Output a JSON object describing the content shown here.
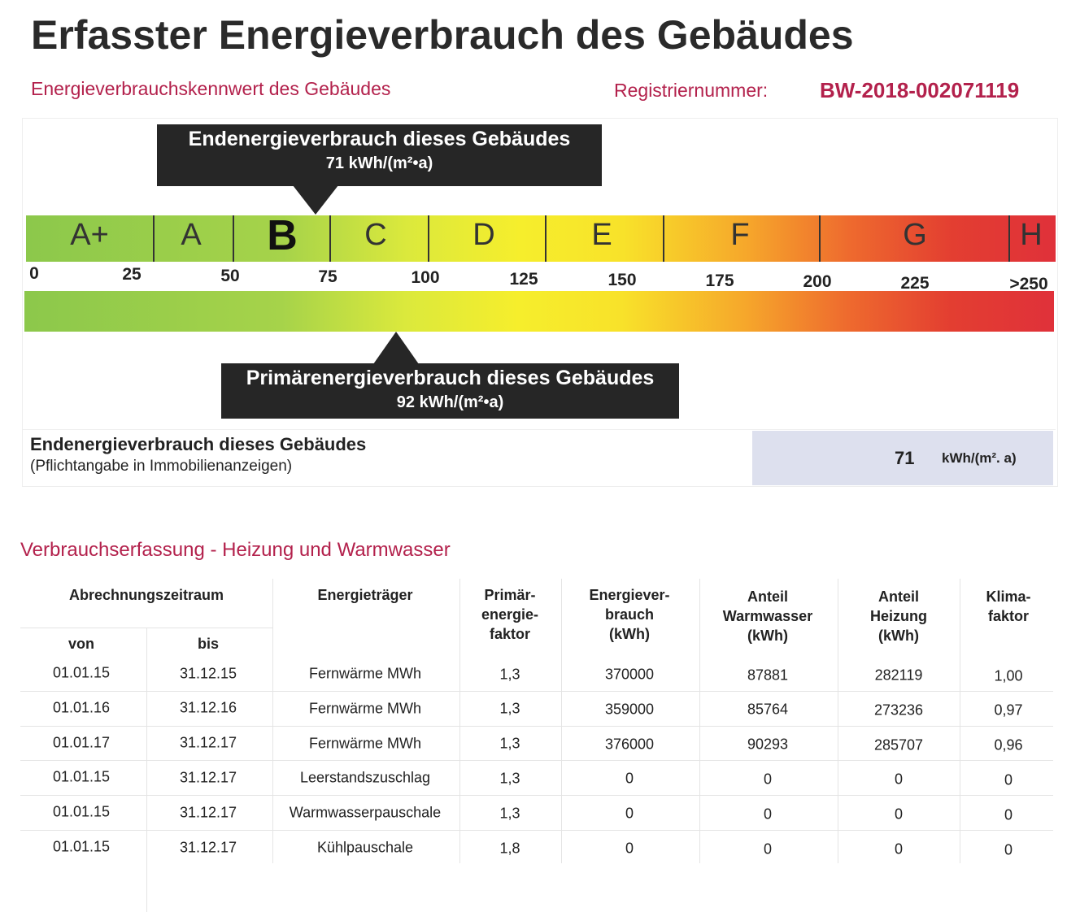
{
  "title": "Erfasster Energieverbrauch des Gebäudes",
  "subtitle": "Energieverbrauchskennwert des Gebäudes",
  "registration": {
    "label": "Registriernummer:",
    "value": "BW-2018-002071119"
  },
  "scale": {
    "classes": [
      "A+",
      "A",
      "B",
      "C",
      "D",
      "E",
      "F",
      "G",
      "H"
    ],
    "ticks": [
      "0",
      "25",
      "50",
      "75",
      "100",
      "125",
      "150",
      "175",
      "200",
      "225",
      ">250"
    ],
    "final_pointer": {
      "label": "Endenergieverbrauch dieses Gebäudes",
      "value": "71 kWh/(m²•a)"
    },
    "primary_pointer": {
      "label": "Primärenergieverbrauch dieses Gebäudes",
      "value": "92 kWh/(m²•a)"
    }
  },
  "summary": {
    "label": "Endenergieverbrauch dieses Gebäudes",
    "note": "(Pflichtangabe in Immobilienanzeigen)",
    "value": "71",
    "unit": "kWh/(m². a)"
  },
  "section_title": "Verbrauchserfassung - Heizung und Warmwasser",
  "table": {
    "group_header": "Abrechnungszeitraum",
    "headers": [
      "von",
      "bis",
      "Energieträger",
      "Primär-\nenergie-\nfaktor",
      "Energiever-\nbrauch\n(kWh)",
      "Anteil\nWarmwasser\n(kWh)",
      "Anteil\nHeizung\n(kWh)",
      "Klima-\nfaktor"
    ],
    "rows": [
      [
        "01.01.15",
        "31.12.15",
        "Fernwärme MWh",
        "1,3",
        "370000",
        "87881",
        "282119",
        "1,00"
      ],
      [
        "01.01.16",
        "31.12.16",
        "Fernwärme MWh",
        "1,3",
        "359000",
        "85764",
        "273236",
        "0,97"
      ],
      [
        "01.01.17",
        "31.12.17",
        "Fernwärme MWh",
        "1,3",
        "376000",
        "90293",
        "285707",
        "0,96"
      ],
      [
        "01.01.15",
        "31.12.17",
        "Leerstandszuschlag",
        "1,3",
        "0",
        "0",
        "0",
        "0"
      ],
      [
        "01.01.15",
        "31.12.17",
        "Warmwasserpauschale",
        "1,3",
        "0",
        "0",
        "0",
        "0"
      ],
      [
        "01.01.15",
        "31.12.17",
        "Kühlpauschale",
        "1,8",
        "0",
        "0",
        "0",
        "0"
      ]
    ]
  }
}
